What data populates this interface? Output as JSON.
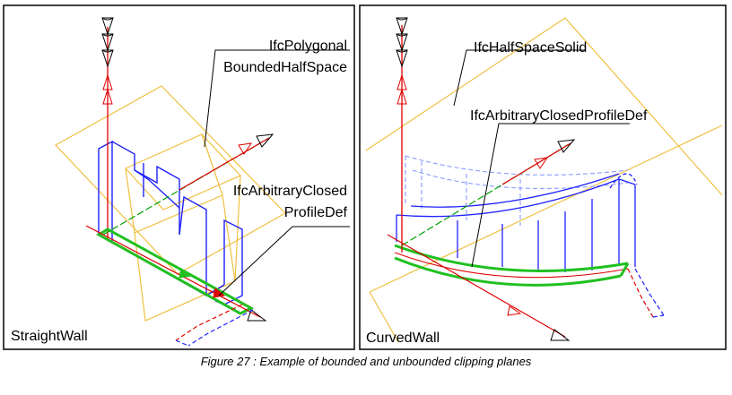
{
  "left_panel": {
    "title": "StraightWall",
    "labels": {
      "half_space_line1": "IfcPolygonal",
      "half_space_line2": "BoundedHalfSpace",
      "profile_line1": "IfcArbitraryClosed",
      "profile_line2": "ProfileDef"
    }
  },
  "right_panel": {
    "title": "CurvedWall",
    "labels": {
      "half_space": "IfcHalfSpaceSolid",
      "profile": "IfcArbitraryClosedProfileDef"
    }
  },
  "caption": "Figure 27 : Example of bounded and unbounded clipping planes",
  "colors": {
    "frame": "#000000",
    "wall_outline": "#2020ff",
    "wall_dashed": "#8a9cff",
    "plane": "#f0c040",
    "axis_red": "#e00000",
    "axis_green": "#00a000",
    "profile_green": "#20c020",
    "leader": "#000000"
  },
  "icons": [
    "arrowhead-cone-icon",
    "axis-arrow-icon"
  ]
}
